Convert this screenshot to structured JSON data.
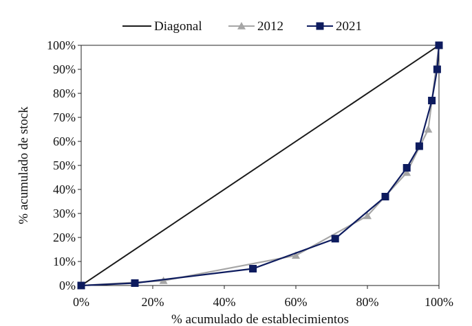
{
  "chart_data": {
    "type": "line",
    "title": "",
    "xlabel": "% acumulado de establecimientos",
    "ylabel": "% acumulado de stock",
    "xlim": [
      0,
      100
    ],
    "ylim": [
      0,
      100
    ],
    "x_ticks": [
      "0%",
      "20%",
      "40%",
      "60%",
      "80%",
      "100%"
    ],
    "y_ticks": [
      "0%",
      "10%",
      "20%",
      "30%",
      "40%",
      "50%",
      "60%",
      "70%",
      "80%",
      "90%",
      "100%"
    ],
    "legend_position": "top-center",
    "series": [
      {
        "name": "Diagonal",
        "color": "#1a1a1a",
        "marker": "none",
        "x": [
          0,
          100
        ],
        "y": [
          0,
          100
        ]
      },
      {
        "name": "2012",
        "color": "#a6a6a6",
        "marker": "triangle",
        "x": [
          0,
          23,
          60,
          80,
          91,
          97,
          100
        ],
        "y": [
          0,
          2,
          12.5,
          29,
          47,
          65,
          100
        ]
      },
      {
        "name": "2021",
        "color": "#0d1b5e",
        "marker": "square",
        "x": [
          0,
          15,
          48,
          71,
          85,
          91,
          94.5,
          98,
          99.5,
          100
        ],
        "y": [
          0,
          1,
          7,
          19.5,
          37,
          49,
          58,
          77,
          90,
          100
        ]
      }
    ]
  }
}
